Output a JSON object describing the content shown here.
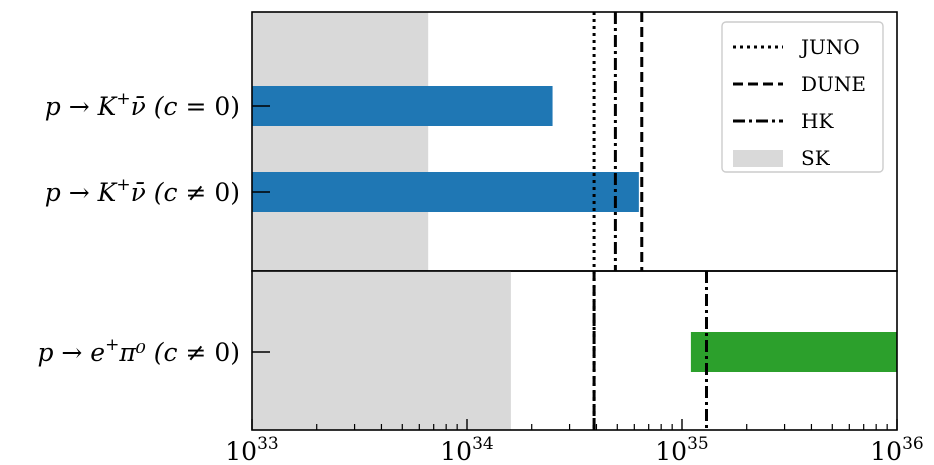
{
  "chart_data": {
    "type": "bar",
    "xscale": "log",
    "xlim": [
      1e+33,
      1e+36
    ],
    "x_ticks": [
      {
        "value": 1e+33,
        "base": "10",
        "exp": "33"
      },
      {
        "value": 1e+34,
        "base": "10",
        "exp": "34"
      },
      {
        "value": 1e+35,
        "base": "10",
        "exp": "35"
      },
      {
        "value": 1e+36,
        "base": "10",
        "exp": "36"
      }
    ],
    "panels": [
      {
        "categories": [
          {
            "pre": "p → K",
            "sup": "+",
            "mid": "ν̄ (",
            "var": "c",
            "post": " = 0)"
          },
          {
            "pre": "p → K",
            "sup": "+",
            "mid": "ν̄ (",
            "var": "c",
            "post": " ≠ 0)"
          }
        ],
        "bars": [
          {
            "xmin": 1e+33,
            "xmax": 2.5e+34,
            "color": "#1f77b4"
          },
          {
            "xmin": 1e+33,
            "xmax": 6.3e+34,
            "color": "#1f77b4"
          }
        ],
        "SK": 6.6e+33,
        "JUNO": 3.9e+34,
        "HK": 4.9e+34,
        "DUNE": 6.5e+34
      },
      {
        "categories": [
          {
            "pre": "p → e",
            "sup": "+",
            "mid": "π⁰ (",
            "var": "c",
            "post": " ≠ 0)"
          }
        ],
        "bars": [
          {
            "xmin": 1.1e+35,
            "xmax": 1e+36,
            "color": "#2ca02c"
          }
        ],
        "SK": 1.6e+34,
        "JUNO": 3.9e+34,
        "DUNE": 3.9e+34,
        "HK": 1.3e+35
      }
    ],
    "legend": {
      "position": "top-right",
      "entries": [
        {
          "name": "JUNO",
          "style": "dotted"
        },
        {
          "name": "DUNE",
          "style": "dashed"
        },
        {
          "name": "HK",
          "style": "dashdot"
        },
        {
          "name": "SK",
          "style": "gray-fill"
        }
      ]
    },
    "colors": {
      "sk_fill": "#d9d9d9",
      "line": "#000000"
    }
  }
}
